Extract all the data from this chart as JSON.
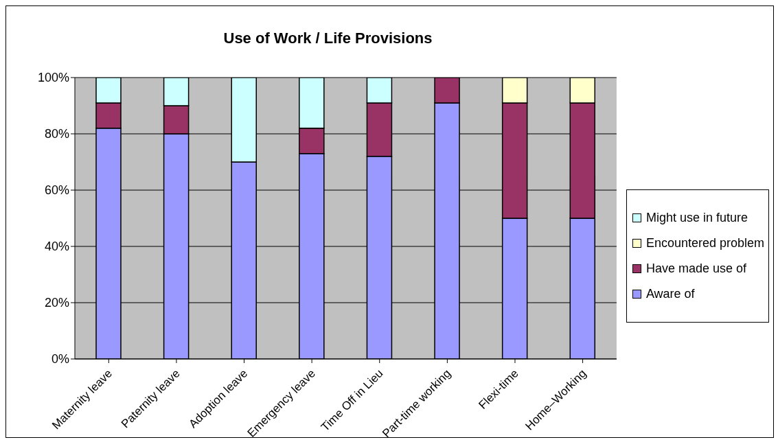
{
  "chart_data": {
    "type": "bar",
    "title": "Use of Work / Life Provisions",
    "stacked": true,
    "categories": [
      "Maternity leave",
      "Paternity leave",
      "Adoption leave",
      "Emergency leave",
      "Time Off in Lieu",
      "Part-time working",
      "Flexi-time",
      "Home–Working"
    ],
    "series": [
      {
        "name": "Aware of",
        "color": "#9999ff",
        "values": [
          82,
          80,
          70,
          73,
          72,
          91,
          50,
          50
        ]
      },
      {
        "name": "Have made use of",
        "color": "#993366",
        "values": [
          9,
          10,
          0,
          9,
          19,
          9,
          41,
          41
        ]
      },
      {
        "name": "Encountered problem",
        "color": "#ffffcc",
        "values": [
          0,
          0,
          0,
          0,
          0,
          0,
          9,
          9
        ]
      },
      {
        "name": "Might use in future",
        "color": "#ccffff",
        "values": [
          9,
          10,
          30,
          18,
          9,
          0,
          0,
          0
        ]
      }
    ],
    "ylim": [
      0,
      100
    ],
    "yticks": [
      {
        "value": 0,
        "label": "0%"
      },
      {
        "value": 20,
        "label": "20%"
      },
      {
        "value": 40,
        "label": "40%"
      },
      {
        "value": 60,
        "label": "60%"
      },
      {
        "value": 80,
        "label": "80%"
      },
      {
        "value": 100,
        "label": "100%"
      }
    ],
    "grid": "y",
    "legend": "right"
  }
}
